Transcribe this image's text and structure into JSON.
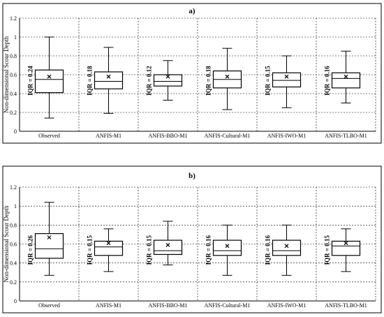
{
  "chart_data": [
    {
      "type": "box",
      "title": "a)",
      "ylabel": "Non-dimensional Scour Depth",
      "ylim": [
        0,
        1.2
      ],
      "yticks": [
        "0",
        "0.2",
        "0.4",
        "0.6",
        "0.8",
        "1",
        "1.2"
      ],
      "grid": true,
      "categories": [
        "Observed",
        "ANFIS-M1",
        "ANFIS-BBO-M1",
        "ANFIS-Cultural-M1",
        "ANFIS-IWO-M1",
        "ANFIS-TLBO-M1"
      ],
      "boxes": [
        {
          "min": 0.14,
          "q1": 0.41,
          "median": 0.55,
          "q3": 0.65,
          "max": 1.0,
          "mean": 0.58,
          "iqr_label": "IQR = 0.24"
        },
        {
          "min": 0.19,
          "q1": 0.45,
          "median": 0.53,
          "q3": 0.63,
          "max": 0.89,
          "mean": 0.58,
          "iqr_label": "IQR = 0.18"
        },
        {
          "min": 0.33,
          "q1": 0.48,
          "median": 0.53,
          "q3": 0.6,
          "max": 0.75,
          "mean": 0.58,
          "iqr_label": "IQR = 0.12"
        },
        {
          "min": 0.23,
          "q1": 0.46,
          "median": 0.55,
          "q3": 0.64,
          "max": 0.88,
          "mean": 0.58,
          "iqr_label": "IQR = 0.18"
        },
        {
          "min": 0.25,
          "q1": 0.47,
          "median": 0.54,
          "q3": 0.62,
          "max": 0.8,
          "mean": 0.58,
          "iqr_label": "IQR = 0.15"
        },
        {
          "min": 0.3,
          "q1": 0.46,
          "median": 0.56,
          "q3": 0.62,
          "max": 0.85,
          "mean": 0.58,
          "iqr_label": "IQR = 0.16"
        }
      ]
    },
    {
      "type": "box",
      "title": "b)",
      "ylabel": "Non-dimensional Scour Depth",
      "ylim": [
        0,
        1.2
      ],
      "yticks": [
        "0",
        "0.2",
        "0.4",
        "0.6",
        "0.8",
        "1",
        "1.2"
      ],
      "grid": true,
      "categories": [
        "Observed",
        "ANFIS-M1",
        "ANFIS-BBO-M1",
        "ANFIS-Cultural-M1",
        "ANFIS-IWO-M1",
        "ANFIS-TLBO-M1"
      ],
      "boxes": [
        {
          "min": 0.27,
          "q1": 0.45,
          "median": 0.55,
          "q3": 0.71,
          "max": 1.04,
          "mean": 0.67,
          "iqr_label": "IQR = 0.26"
        },
        {
          "min": 0.31,
          "q1": 0.48,
          "median": 0.57,
          "q3": 0.63,
          "max": 0.76,
          "mean": 0.61,
          "iqr_label": "IQR = 0.15"
        },
        {
          "min": 0.38,
          "q1": 0.49,
          "median": 0.53,
          "q3": 0.64,
          "max": 0.84,
          "mean": 0.59,
          "iqr_label": "IQR = 0.15"
        },
        {
          "min": 0.27,
          "q1": 0.48,
          "median": 0.53,
          "q3": 0.64,
          "max": 0.8,
          "mean": 0.58,
          "iqr_label": "IQR = 0.16"
        },
        {
          "min": 0.27,
          "q1": 0.48,
          "median": 0.53,
          "q3": 0.64,
          "max": 0.8,
          "mean": 0.58,
          "iqr_label": "IQR = 0.16"
        },
        {
          "min": 0.31,
          "q1": 0.48,
          "median": 0.58,
          "q3": 0.63,
          "max": 0.76,
          "mean": 0.61,
          "iqr_label": "IQR = 0.15"
        }
      ]
    }
  ]
}
